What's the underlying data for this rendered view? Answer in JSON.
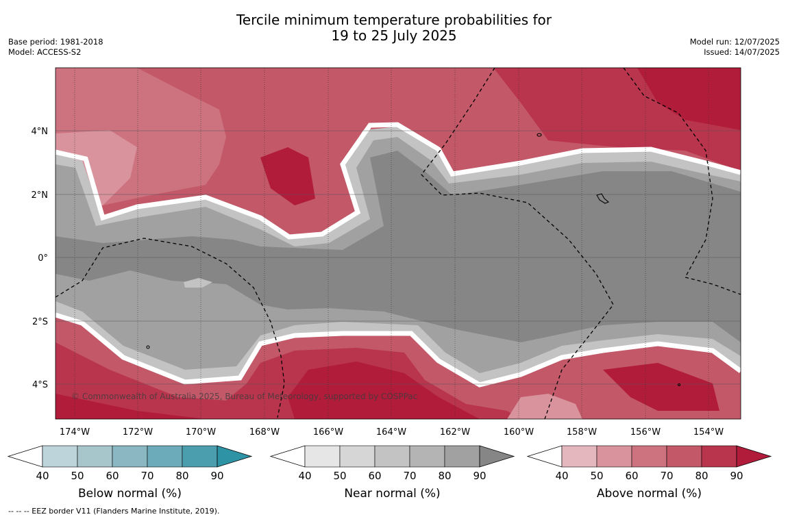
{
  "header": {
    "title_line1": "Tercile minimum temperature probabilities for",
    "title_line2": "19 to 25 July 2025",
    "base_period": "Base period: 1981-2018",
    "model": "Model: ACCESS-S2",
    "model_run": "Model run: 12/07/2025",
    "issued": "Issued: 14/07/2025"
  },
  "map": {
    "lat_labels": [
      "4°N",
      "2°N",
      "0°",
      "2°S",
      "4°S"
    ],
    "lon_labels": [
      "174°W",
      "172°W",
      "170°W",
      "168°W",
      "166°W",
      "164°W",
      "162°W",
      "160°W",
      "158°W",
      "156°W",
      "154°W"
    ],
    "copyright": "© Commonwealth of Australia 2025, Bureau of Meteorology, supported by COSPPac"
  },
  "colorbars": [
    {
      "label": "Below normal (%)",
      "ticks": [
        "40",
        "50",
        "60",
        "70",
        "80",
        "90"
      ],
      "colors": [
        "#ffffff",
        "#bcd4da",
        "#a6c6cc",
        "#8ab7c2",
        "#6cabb9",
        "#4a9eae",
        "#2f93a6"
      ]
    },
    {
      "label": "Near normal (%)",
      "ticks": [
        "40",
        "50",
        "60",
        "70",
        "80",
        "90"
      ],
      "colors": [
        "#ffffff",
        "#e6e6e6",
        "#d6d6d6",
        "#c3c3c3",
        "#b4b4b4",
        "#a1a1a1",
        "#868686"
      ]
    },
    {
      "label": "Above normal (%)",
      "ticks": [
        "40",
        "50",
        "60",
        "70",
        "80",
        "90"
      ],
      "colors": [
        "#ffffff",
        "#e3b7bd",
        "#d8939d",
        "#cd7380",
        "#c25868",
        "#b9354d",
        "#b11c3b"
      ]
    }
  ],
  "footnote": "-- -- -- EEZ border V11 (Flanders Marine Institute, 2019)."
}
